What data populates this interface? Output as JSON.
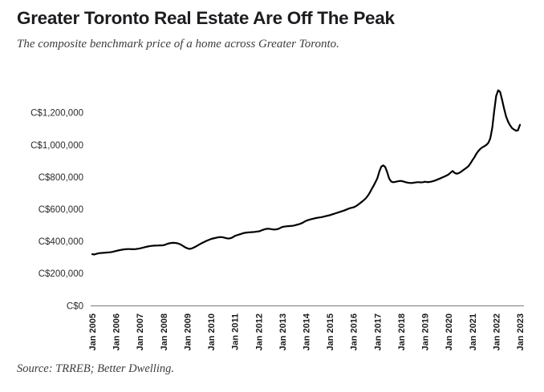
{
  "header": {
    "title": "Greater Toronto Real Estate Are Off The Peak",
    "subtitle": "The composite benchmark price of a home across Greater Toronto."
  },
  "footer": {
    "source": "Source: TRREB; Better Dwelling."
  },
  "chart_data": {
    "type": "line",
    "title": "Greater Toronto Real Estate Are Off The Peak",
    "subtitle": "The composite benchmark price of a home across Greater Toronto.",
    "series_name": "Composite benchmark home price, Greater Toronto",
    "currency": "CAD",
    "x_interval": "monthly",
    "x_start": "Jan 2005",
    "x_end": "Jan 2023",
    "x_tick_labels": [
      "Jan 2005",
      "Jan 2006",
      "Jan 2007",
      "Jan 2008",
      "Jan 2009",
      "Jan 2010",
      "Jan 2011",
      "Jan 2012",
      "Jan 2013",
      "Jan 2014",
      "Jan 2015",
      "Jan 2016",
      "Jan 2017",
      "Jan 2018",
      "Jan 2019",
      "Jan 2020",
      "Jan 2021",
      "Jan 2022",
      "Jan 2023"
    ],
    "y_tick_labels": [
      "C$0",
      "C$200,000",
      "C$400,000",
      "C$600,000",
      "C$800,000",
      "C$1,000,000",
      "C$1,200,000"
    ],
    "y_tick_values": [
      0,
      200000,
      400000,
      600000,
      800000,
      1000000,
      1200000
    ],
    "ylim": [
      0,
      1400000
    ],
    "grid": false,
    "legend": false,
    "line_color": "#000000",
    "axis_color": "#8c8c8c",
    "values_cad": [
      320000,
      318000,
      322000,
      325000,
      327000,
      328000,
      329000,
      330000,
      331000,
      332000,
      334000,
      337000,
      340000,
      343000,
      346000,
      348000,
      350000,
      351000,
      352000,
      352000,
      351000,
      351000,
      352000,
      354000,
      356000,
      359000,
      362000,
      365000,
      368000,
      370000,
      372000,
      373000,
      374000,
      374000,
      375000,
      375000,
      376000,
      380000,
      385000,
      388000,
      390000,
      391000,
      390000,
      388000,
      384000,
      378000,
      370000,
      362000,
      357000,
      353000,
      355000,
      360000,
      366000,
      373000,
      380000,
      387000,
      393000,
      399000,
      405000,
      410000,
      415000,
      418000,
      421000,
      424000,
      426000,
      427000,
      425000,
      422000,
      419000,
      418000,
      420000,
      426000,
      434000,
      438000,
      442000,
      446000,
      450000,
      453000,
      455000,
      456000,
      457000,
      458000,
      459000,
      461000,
      462000,
      466000,
      471000,
      475000,
      478000,
      479000,
      477000,
      475000,
      474000,
      475000,
      478000,
      484000,
      490000,
      492000,
      494000,
      495000,
      496000,
      497000,
      499000,
      502000,
      505000,
      509000,
      514000,
      521000,
      528000,
      532000,
      536000,
      539000,
      542000,
      545000,
      547000,
      549000,
      551000,
      554000,
      557000,
      560000,
      563000,
      567000,
      571000,
      575000,
      579000,
      583000,
      587000,
      591000,
      596000,
      601000,
      606000,
      609000,
      612000,
      618000,
      626000,
      635000,
      645000,
      655000,
      666000,
      681000,
      700000,
      722000,
      744000,
      768000,
      793000,
      835000,
      866000,
      873000,
      862000,
      828000,
      790000,
      772000,
      768000,
      770000,
      773000,
      775000,
      776000,
      773000,
      769000,
      766000,
      764000,
      763000,
      764000,
      766000,
      768000,
      768000,
      767000,
      768000,
      771000,
      769000,
      769000,
      771000,
      774000,
      778000,
      783000,
      788000,
      793000,
      799000,
      804000,
      810000,
      817000,
      828000,
      838000,
      826000,
      821000,
      824000,
      831000,
      840000,
      849000,
      858000,
      868000,
      885000,
      905000,
      922000,
      945000,
      962000,
      975000,
      985000,
      992000,
      1000000,
      1012000,
      1040000,
      1105000,
      1210000,
      1305000,
      1340000,
      1330000,
      1280000,
      1225000,
      1178000,
      1145000,
      1122000,
      1105000,
      1096000,
      1089000,
      1091000,
      1125000
    ]
  }
}
